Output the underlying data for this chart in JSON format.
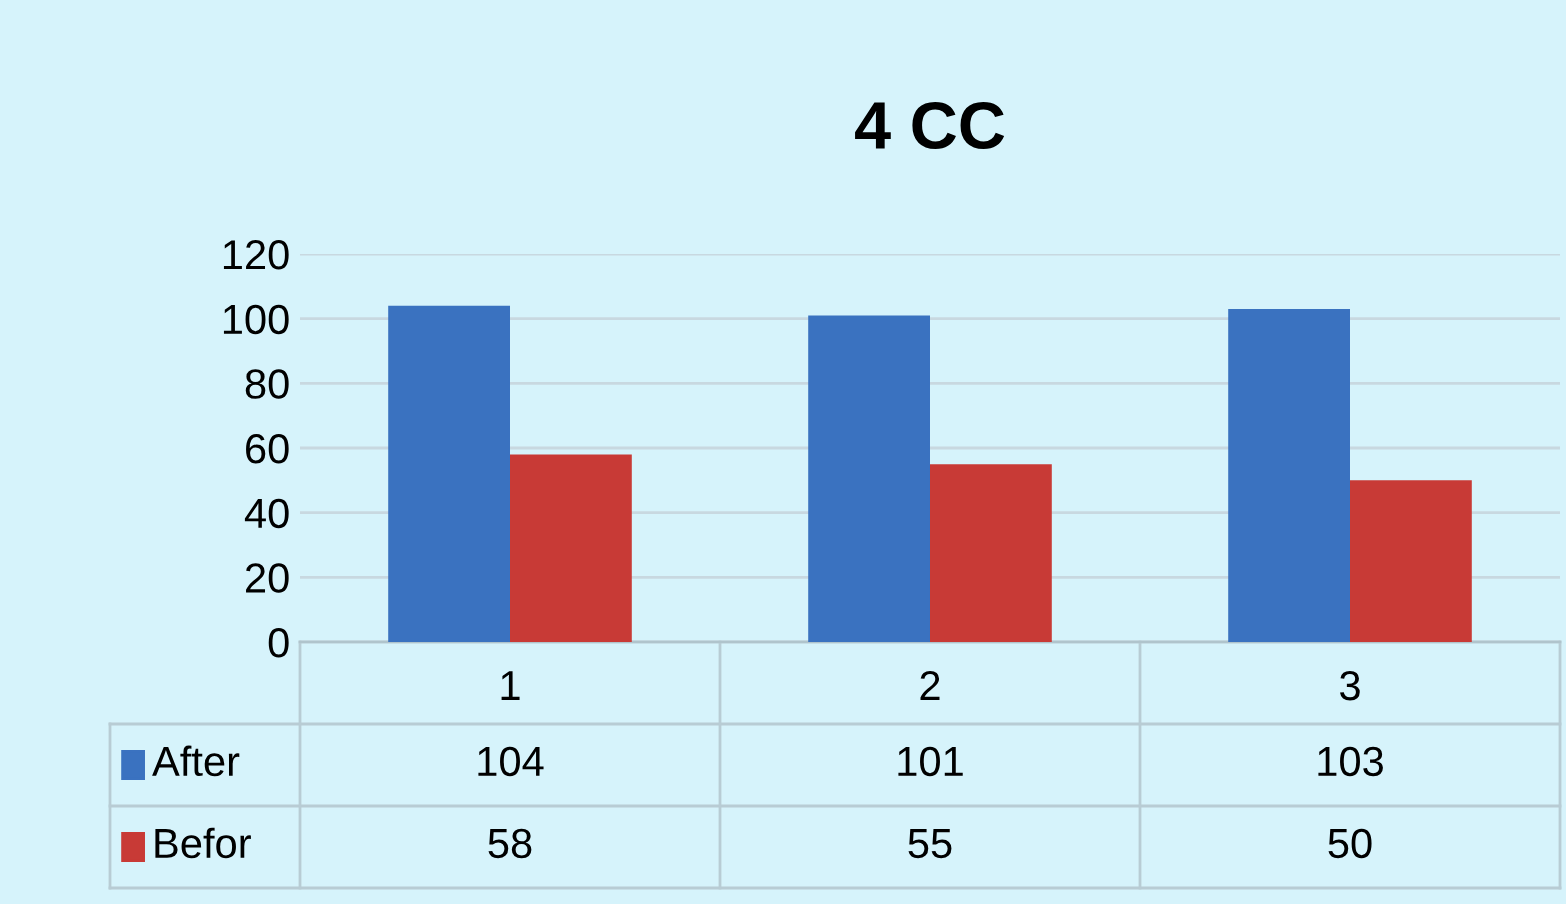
{
  "chart_data": {
    "type": "bar",
    "title": "4 CC",
    "categories": [
      "1",
      "2",
      "3"
    ],
    "series": [
      {
        "name": "After",
        "color": "#3a72c0",
        "values": [
          104,
          101,
          103
        ]
      },
      {
        "name": "Befor",
        "color": "#c83a36",
        "values": [
          58,
          55,
          50
        ]
      }
    ],
    "ylim": [
      0,
      120
    ],
    "yticks": [
      0,
      20,
      40,
      60,
      80,
      100,
      120
    ],
    "grid": "y",
    "legend": "bottom",
    "data_labels": true
  }
}
